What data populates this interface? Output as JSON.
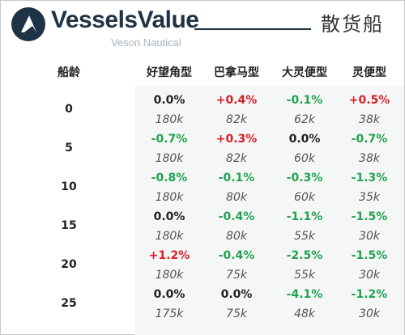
{
  "header": {
    "brand": "VesselsValue",
    "sub_brand": "Veson Nautical",
    "segment": "散货船"
  },
  "table": {
    "age_header": "船龄",
    "columns": [
      "好望角型",
      "巴拿马型",
      "大灵便型",
      "灵便型"
    ],
    "rows": [
      {
        "age": "0",
        "cells": [
          {
            "pct": "0.0%",
            "val": "180k"
          },
          {
            "pct": "+0.4%",
            "val": "82k"
          },
          {
            "pct": "-0.1%",
            "val": "62k"
          },
          {
            "pct": "+0.5%",
            "val": "38k"
          }
        ]
      },
      {
        "age": "5",
        "cells": [
          {
            "pct": "-0.7%",
            "val": "180k"
          },
          {
            "pct": "+0.3%",
            "val": "82k"
          },
          {
            "pct": "0.0%",
            "val": "60k"
          },
          {
            "pct": "-0.7%",
            "val": "38k"
          }
        ]
      },
      {
        "age": "10",
        "cells": [
          {
            "pct": "-0.8%",
            "val": "180k"
          },
          {
            "pct": "-0.1%",
            "val": "80k"
          },
          {
            "pct": "-0.3%",
            "val": "60k"
          },
          {
            "pct": "-1.3%",
            "val": "35k"
          }
        ]
      },
      {
        "age": "15",
        "cells": [
          {
            "pct": "0.0%",
            "val": "180k"
          },
          {
            "pct": "-0.4%",
            "val": "80k"
          },
          {
            "pct": "-1.1%",
            "val": "55k"
          },
          {
            "pct": "-1.5%",
            "val": "30k"
          }
        ]
      },
      {
        "age": "20",
        "cells": [
          {
            "pct": "+1.2%",
            "val": "180k"
          },
          {
            "pct": "-0.4%",
            "val": "75k"
          },
          {
            "pct": "-2.5%",
            "val": "55k"
          },
          {
            "pct": "-1.5%",
            "val": "30k"
          }
        ]
      },
      {
        "age": "25",
        "cells": [
          {
            "pct": "0.0%",
            "val": "175k"
          },
          {
            "pct": "0.0%",
            "val": "75k"
          },
          {
            "pct": "-4.1%",
            "val": "48k"
          },
          {
            "pct": "-1.2%",
            "val": "30k"
          }
        ]
      }
    ]
  },
  "colors": {
    "positive": "#d81f26",
    "negative": "#22a350",
    "neutral": "#222222",
    "brand": "#1f3347"
  }
}
